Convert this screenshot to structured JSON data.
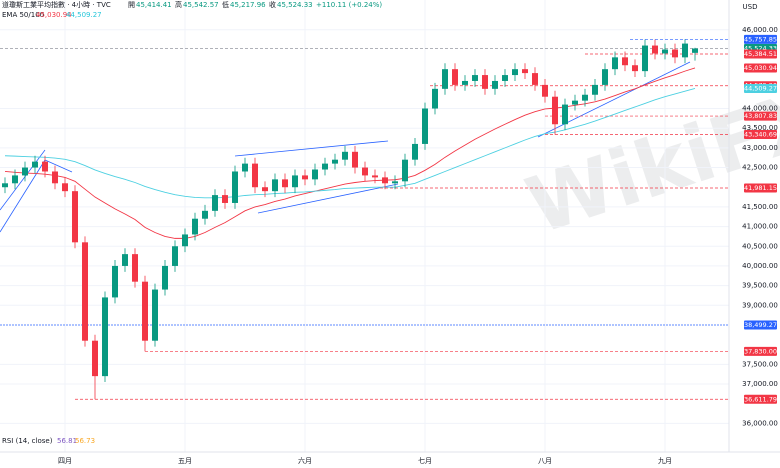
{
  "chart_data": {
    "type": "candlestick",
    "title": "道瓊斯工業平均指數 · 4小時 · TVC",
    "quote": {
      "labels": [
        "開",
        "高",
        "低",
        "收"
      ],
      "values": [
        45414.41,
        45542.57,
        45217.96,
        45524.33
      ],
      "value_labels": [
        "45,414.41",
        "45,542.57",
        "45,217.96",
        "45,524.33"
      ]
    },
    "change": {
      "value": 110.11,
      "label": "+110.11 (+0.24%)"
    },
    "currency": "USD",
    "up_color": "#089981",
    "down_color": "#f23645",
    "ylim": [
      35450,
      46300
    ],
    "yticks": [
      {
        "value": 36000,
        "label": "36,000.00"
      },
      {
        "value": 37000,
        "label": "37,000.00"
      },
      {
        "value": 37500,
        "label": "37,500.00"
      },
      {
        "value": 39000,
        "label": "39,000.00"
      },
      {
        "value": 39500,
        "label": "39,500.00"
      },
      {
        "value": 40000,
        "label": "40,000.00"
      },
      {
        "value": 40500,
        "label": "40,500.00"
      },
      {
        "value": 41000,
        "label": "41,000.00"
      },
      {
        "value": 41500,
        "label": "41,500.00"
      },
      {
        "value": 42500,
        "label": "42,500.00"
      },
      {
        "value": 43000,
        "label": "43,000.00"
      },
      {
        "value": 43500,
        "label": "43,500.00"
      },
      {
        "value": 44000,
        "label": "44,000.00"
      },
      {
        "value": 46000,
        "label": "46,000.00"
      }
    ],
    "grid": true,
    "categories": [
      null,
      null,
      null,
      null,
      null,
      null,
      "四月",
      null,
      null,
      null,
      null,
      null,
      null,
      null,
      null,
      null,
      null,
      null,
      "五月",
      null,
      null,
      null,
      null,
      null,
      null,
      null,
      null,
      null,
      null,
      null,
      "六月",
      null,
      null,
      null,
      null,
      null,
      null,
      null,
      null,
      null,
      null,
      null,
      "七月",
      null,
      null,
      null,
      null,
      null,
      null,
      null,
      null,
      null,
      null,
      null,
      "八月",
      null,
      null,
      null,
      null,
      null,
      null,
      null,
      null,
      null,
      null,
      null,
      "九月",
      null,
      null,
      null
    ],
    "open": [
      42000,
      42100,
      42300,
      42500,
      42650,
      42400,
      42100,
      41900,
      40600,
      38100,
      37200,
      39200,
      40000,
      40300,
      39600,
      38100,
      39400,
      40000,
      40500,
      40800,
      41200,
      41400,
      41800,
      41600,
      42400,
      42600,
      42000,
      41900,
      42200,
      42000,
      42300,
      42200,
      42450,
      42600,
      42700,
      42900,
      42500,
      42300,
      42250,
      42100,
      42150,
      42700,
      43100,
      44000,
      44500,
      45000,
      44600,
      44700,
      44850,
      44500,
      44700,
      44850,
      45000,
      44900,
      44600,
      44300,
      43600,
      44100,
      44200,
      44350,
      44600,
      45000,
      45300,
      45100,
      44950,
      45600,
      45400,
      45500,
      45300,
      45414.41
    ],
    "high": [
      42250,
      42450,
      42650,
      42800,
      42800,
      42550,
      42250,
      42050,
      40750,
      38250,
      39350,
      40150,
      40450,
      40450,
      39750,
      39550,
      40150,
      40650,
      40950,
      41350,
      41550,
      41950,
      41950,
      42550,
      42750,
      42750,
      42150,
      42350,
      42350,
      42450,
      42450,
      42600,
      42750,
      42850,
      43050,
      43050,
      42650,
      42450,
      42400,
      42300,
      42850,
      43250,
      44150,
      44650,
      45150,
      45150,
      44850,
      45000,
      45000,
      44850,
      45000,
      45150,
      45150,
      45050,
      44750,
      44450,
      44250,
      44350,
      44500,
      44750,
      45150,
      45450,
      45450,
      45250,
      45750,
      45750,
      45650,
      45650,
      45757.85,
      45542.57
    ],
    "low": [
      41850,
      41950,
      42150,
      42350,
      42250,
      41950,
      41750,
      40450,
      37950,
      36611.79,
      37050,
      39050,
      39850,
      39450,
      37830,
      37950,
      39250,
      39850,
      40350,
      40650,
      41050,
      41250,
      41450,
      41450,
      42250,
      41850,
      41750,
      41750,
      41850,
      41850,
      42050,
      42050,
      42300,
      42450,
      42550,
      42350,
      42150,
      42100,
      41950,
      41950,
      42000,
      42550,
      42950,
      43850,
      44350,
      44450,
      44450,
      44550,
      44350,
      44350,
      44550,
      44700,
      44750,
      44450,
      44150,
      43340.69,
      43450,
      43950,
      44050,
      44200,
      44450,
      44850,
      44950,
      44800,
      44800,
      45250,
      45250,
      45150,
      45150,
      45217.96
    ],
    "close": [
      42100,
      42300,
      42500,
      42650,
      42400,
      42100,
      41900,
      40600,
      38100,
      37200,
      39200,
      40000,
      40300,
      39600,
      38100,
      39400,
      40000,
      40500,
      40800,
      41200,
      41400,
      41800,
      41600,
      42400,
      42600,
      42000,
      41900,
      42200,
      42000,
      42300,
      42200,
      42450,
      42600,
      42700,
      42900,
      42500,
      42300,
      42250,
      42100,
      42150,
      42700,
      43100,
      44000,
      44500,
      45000,
      44600,
      44700,
      44850,
      44500,
      44700,
      44850,
      45000,
      44900,
      44600,
      44300,
      43600,
      44100,
      44200,
      44350,
      44600,
      45000,
      45300,
      45100,
      44950,
      45600,
      45400,
      45500,
      45300,
      45650,
      45524.33
    ],
    "ema": {
      "name": "EMA 50/100",
      "legend_values": [
        45030.94,
        44509.27
      ],
      "legend_value_labels": [
        "45,030.94",
        "44,509.27"
      ],
      "series": [
        {
          "color": "#f23645",
          "values": [
            42400,
            42380,
            42360,
            42350,
            42330,
            42300,
            42250,
            42150,
            41950,
            41750,
            41600,
            41450,
            41320,
            41180,
            40980,
            40850,
            40750,
            40700,
            40700,
            40750,
            40850,
            40980,
            41100,
            41250,
            41400,
            41500,
            41560,
            41640,
            41700,
            41780,
            41840,
            41900,
            41960,
            42020,
            42080,
            42120,
            42150,
            42170,
            42180,
            42190,
            42230,
            42300,
            42430,
            42580,
            42760,
            42920,
            43070,
            43220,
            43350,
            43480,
            43600,
            43720,
            43830,
            43920,
            43990,
            44010,
            44040,
            44080,
            44120,
            44170,
            44240,
            44330,
            44420,
            44500,
            44600,
            44690,
            44780,
            44860,
            44950,
            45030.94
          ]
        },
        {
          "color": "#4dd0e1",
          "values": [
            42800,
            42790,
            42780,
            42770,
            42760,
            42740,
            42710,
            42650,
            42550,
            42440,
            42350,
            42270,
            42200,
            42120,
            42020,
            41940,
            41870,
            41810,
            41770,
            41740,
            41730,
            41730,
            41740,
            41760,
            41790,
            41810,
            41820,
            41840,
            41850,
            41870,
            41880,
            41900,
            41920,
            41940,
            41970,
            41980,
            41990,
            42000,
            42000,
            42000,
            42050,
            42100,
            42200,
            42300,
            42400,
            42500,
            42600,
            42700,
            42800,
            42900,
            43000,
            43100,
            43200,
            43290,
            43360,
            43400,
            43460,
            43530,
            43600,
            43680,
            43770,
            43860,
            43950,
            44040,
            44130,
            44220,
            44300,
            44370,
            44440,
            44509.27
          ]
        }
      ]
    },
    "levels": [
      {
        "value": 45757.85,
        "label": "45,757.85",
        "color": "#2962ff"
      },
      {
        "value": 45524.33,
        "label": "45,524.33",
        "color": "#089981"
      },
      {
        "value": 45384.51,
        "label": "45,384.51",
        "color": "#f23645"
      },
      {
        "value": 45030.94,
        "label": "45,030.94",
        "color": "#f23645"
      },
      {
        "value": 44579.2,
        "label": "44,579.20",
        "color": "#f23645"
      },
      {
        "value": 44509.27,
        "label": "44,509.27",
        "color": "#4dd0e1"
      },
      {
        "value": 43807.83,
        "label": "43,807.83",
        "color": "#f23645"
      },
      {
        "value": 43340.69,
        "label": "43,340.69",
        "color": "#f23645"
      },
      {
        "value": 41981.15,
        "label": "41,981.15",
        "color": "#f23645"
      },
      {
        "value": 38499.27,
        "label": "38,499.27",
        "color": "#2962ff"
      },
      {
        "value": 37830.0,
        "label": "37,830.00",
        "color": "#f23645"
      },
      {
        "value": 36611.79,
        "label": "36,611.79",
        "color": "#f23645"
      }
    ],
    "rsi": {
      "name": "RSI (14, close)",
      "values": [
        56.81,
        56.73
      ],
      "colors": [
        "#7e57c2",
        "#f9a825"
      ]
    },
    "watermark": "WikiFX"
  }
}
